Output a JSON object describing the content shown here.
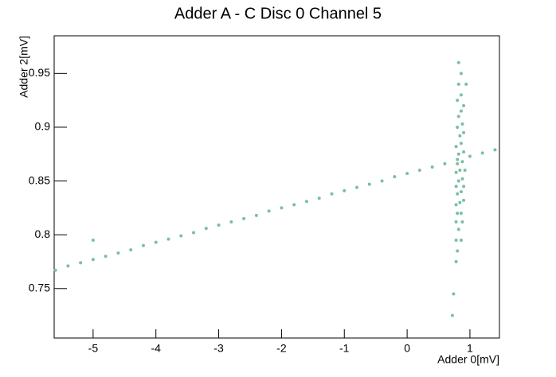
{
  "chart_data": {
    "type": "scatter",
    "title": "Adder A - C Disc 0 Channel 5",
    "x_label": "Adder 0[mV]",
    "y_label": "Adder 2[mV]",
    "color": "#79c0a0",
    "xlim": [
      -5.62,
      1.47
    ],
    "ylim": [
      0.704,
      0.985
    ],
    "xticks": [
      -5,
      -4,
      -3,
      -2,
      -1,
      0,
      1
    ],
    "yticks": [
      0.75,
      0.8,
      0.85,
      0.9,
      0.95
    ],
    "x": [
      -5.6,
      -5.4,
      -5.2,
      -5.0,
      -4.8,
      -4.6,
      -4.4,
      -4.2,
      -4.0,
      -3.8,
      -3.6,
      -3.4,
      -3.2,
      -3.0,
      -2.8,
      -2.6,
      -2.4,
      -2.2,
      -2.0,
      -1.8,
      -1.6,
      -1.4,
      -1.2,
      -1.0,
      -0.8,
      -0.6,
      -0.4,
      -0.2,
      0,
      0.2,
      0.4,
      0.6,
      0.8,
      1.0,
      1.2,
      1.4,
      -5.0,
      0.72,
      0.74,
      0.78,
      0.8,
      0.78,
      0.86,
      0.82,
      0.78,
      0.88,
      0.8,
      0.86,
      0.78,
      0.84,
      0.9,
      0.8,
      0.86,
      0.78,
      0.9,
      0.82,
      0.88,
      0.78,
      0.84,
      0.92,
      0.8,
      0.88,
      0.82,
      0.9,
      0.78,
      0.86,
      0.84,
      0.9,
      0.8,
      0.88,
      0.82,
      0.86,
      0.9,
      0.8,
      0.86,
      0.94,
      0.82,
      0.86,
      0.82
    ],
    "y": [
      0.767,
      0.771,
      0.774,
      0.777,
      0.78,
      0.783,
      0.786,
      0.79,
      0.793,
      0.796,
      0.799,
      0.802,
      0.806,
      0.809,
      0.812,
      0.815,
      0.818,
      0.822,
      0.825,
      0.828,
      0.831,
      0.834,
      0.838,
      0.841,
      0.844,
      0.847,
      0.85,
      0.854,
      0.857,
      0.86,
      0.863,
      0.866,
      0.87,
      0.873,
      0.876,
      0.879,
      0.795,
      0.725,
      0.745,
      0.775,
      0.785,
      0.795,
      0.795,
      0.805,
      0.812,
      0.812,
      0.82,
      0.82,
      0.828,
      0.83,
      0.832,
      0.838,
      0.84,
      0.845,
      0.845,
      0.85,
      0.852,
      0.858,
      0.86,
      0.86,
      0.866,
      0.868,
      0.875,
      0.877,
      0.882,
      0.885,
      0.892,
      0.895,
      0.9,
      0.903,
      0.91,
      0.915,
      0.92,
      0.925,
      0.93,
      0.94,
      0.94,
      0.95,
      0.96
    ]
  }
}
